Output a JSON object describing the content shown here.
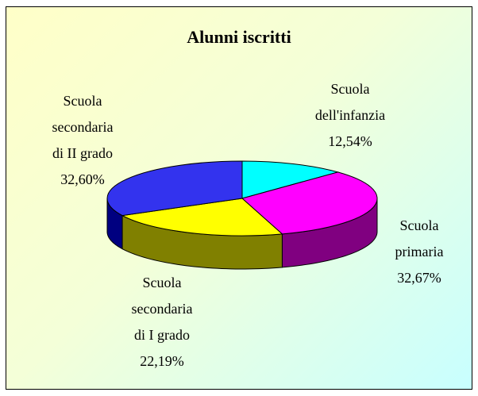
{
  "chart_data": {
    "type": "pie3d",
    "title": "Alunni iscritti",
    "categories": [
      "Scuola\ndell'infanzia",
      "Scuola\nprimaria",
      "Scuola\nsecondaria\ndi I grado",
      "Scuola\nsecondaria\ndi II grado"
    ],
    "values": [
      12.54,
      32.67,
      22.19,
      32.6
    ],
    "value_labels": [
      "12,54%",
      "32,67%",
      "22,19%",
      "32,60%"
    ],
    "colors": [
      "#00ffff",
      "#ff00ff",
      "#ffff00",
      "#3333ee"
    ],
    "side_colors": [
      "#008080",
      "#800080",
      "#808000",
      "#000080"
    ]
  }
}
